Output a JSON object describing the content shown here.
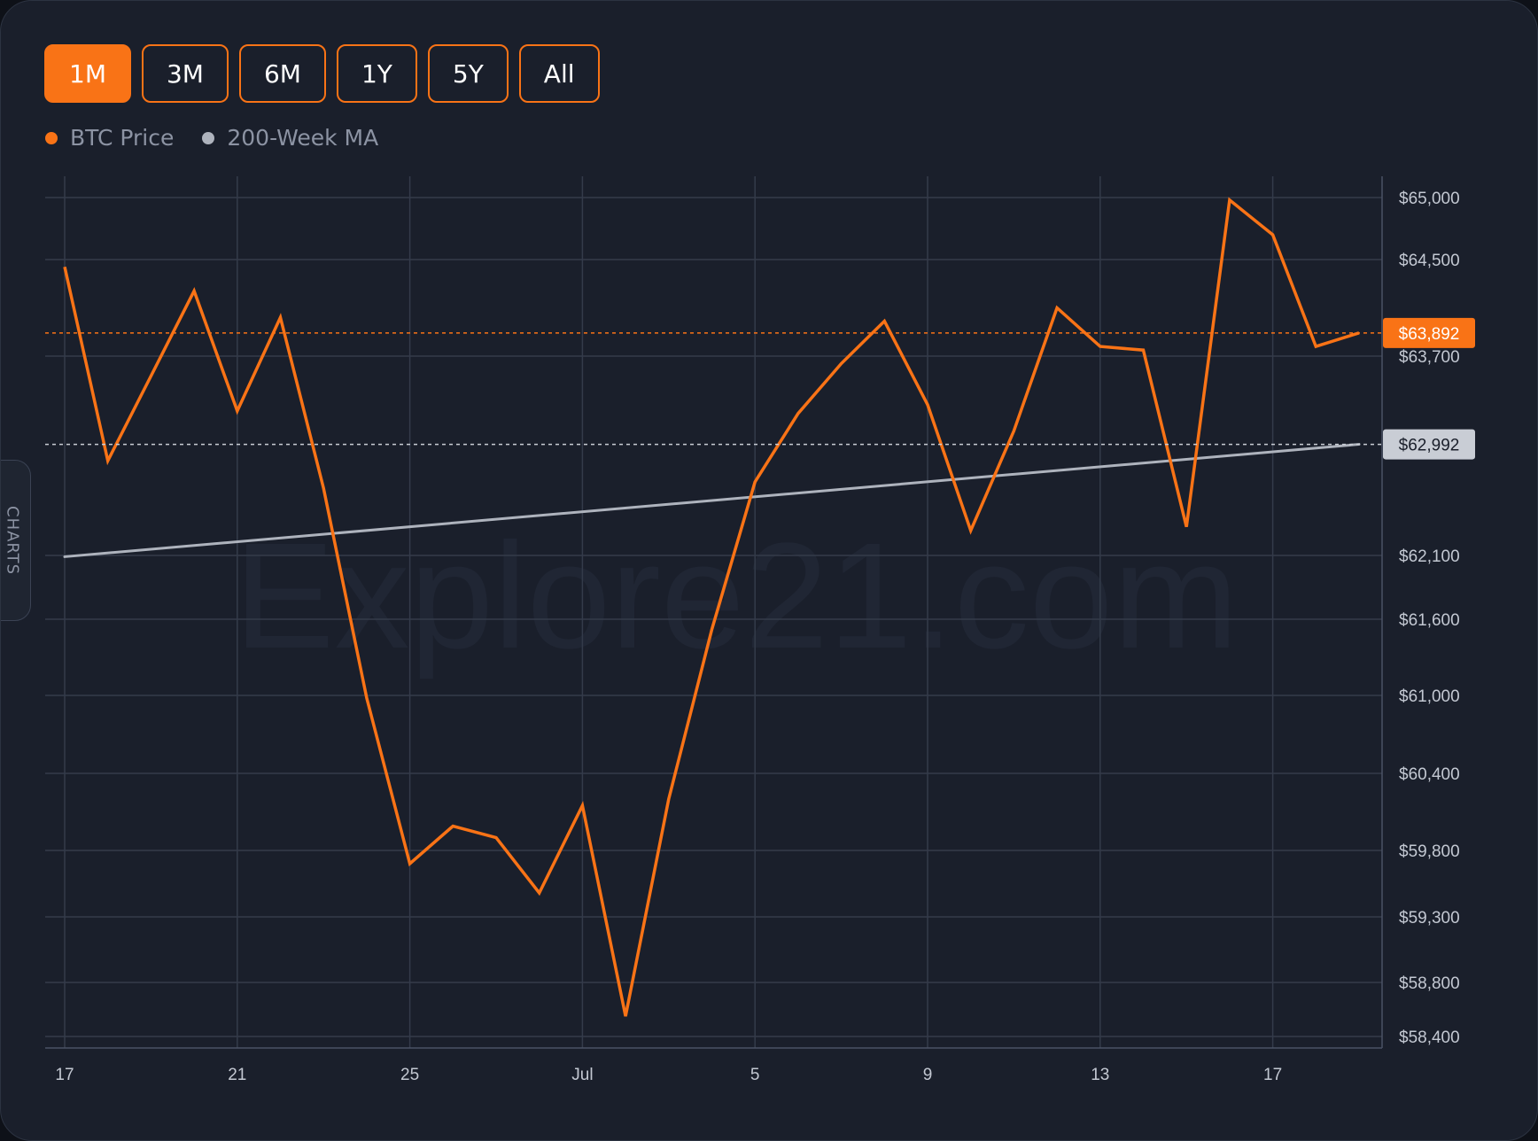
{
  "ranges": [
    {
      "label": "1M",
      "active": true
    },
    {
      "label": "3M",
      "active": false
    },
    {
      "label": "6M",
      "active": false
    },
    {
      "label": "1Y",
      "active": false
    },
    {
      "label": "5Y",
      "active": false
    },
    {
      "label": "All",
      "active": false
    }
  ],
  "side_tab_label": "CHARTS",
  "colors": {
    "accent": "#f97316",
    "ma_line": "#aeb3bd",
    "grid": "#343b4a",
    "background": "#1a1f2b"
  },
  "watermark": "Explore21.com",
  "chart_data": {
    "type": "line",
    "x_range": [
      "Jun 17",
      "Jul 17"
    ],
    "x_ticks": [
      "17",
      "21",
      "25",
      "Jul",
      "5",
      "9",
      "13",
      "17"
    ],
    "y_ticks": [
      "$65,000",
      "$64,500",
      "$63,700",
      "$62,100",
      "$61,600",
      "$61,000",
      "$60,400",
      "$59,800",
      "$59,300",
      "$58,800",
      "$58,400"
    ],
    "legend_placement": "top-left",
    "grid": true,
    "series": [
      {
        "name": "BTC Price",
        "color": "#f97316",
        "x": [
          "Jun 17",
          "Jun 18",
          "Jun 19",
          "Jun 20",
          "Jun 21",
          "Jun 22",
          "Jun 23",
          "Jun 24",
          "Jun 25",
          "Jun 26",
          "Jun 27",
          "Jun 28",
          "Jun 29",
          "Jun 30",
          "Jul 1",
          "Jul 2",
          "Jul 3",
          "Jul 4",
          "Jul 5",
          "Jul 6",
          "Jul 7",
          "Jul 8",
          "Jul 9",
          "Jul 10",
          "Jul 11",
          "Jul 12",
          "Jul 13",
          "Jul 14",
          "Jul 15",
          "Jul 16",
          "Jul 17"
        ],
        "values": [
          64440,
          62860,
          63540,
          64240,
          63260,
          64020,
          62640,
          60980,
          59700,
          59990,
          59900,
          59480,
          60150,
          58550,
          60200,
          61520,
          62690,
          63240,
          63640,
          63990,
          63310,
          62300,
          63100,
          64100,
          63780,
          63750,
          62330,
          64980,
          64700,
          63780,
          63892
        ],
        "last_value_label": "$63,892"
      },
      {
        "name": "200-Week MA",
        "color": "#aeb3bd",
        "x": [
          "Jun 17",
          "Jul 17"
        ],
        "values": [
          62090,
          62992
        ],
        "last_value_label": "$62,992"
      }
    ]
  }
}
